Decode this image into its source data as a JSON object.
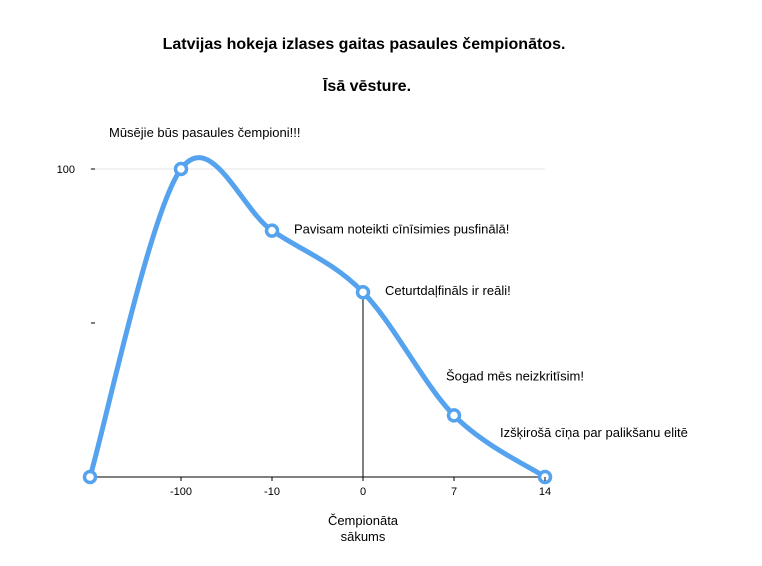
{
  "title": "Latvijas hokeja izlases gaitas pasaules čempionātos.",
  "subtitle": "Īsā vēsture.",
  "chart_data": {
    "type": "line",
    "title": "Latvijas hokeja izlases gaitas pasaules čempionātos.",
    "subtitle": "Īsā vēsture.",
    "xlabel": "Čempionāta\nsākums",
    "ylabel": "",
    "categories": [
      "",
      "-100",
      "-10",
      "0",
      "7",
      "14"
    ],
    "series": [
      {
        "values": [
          0,
          100,
          80,
          60,
          20,
          0
        ]
      }
    ],
    "y_ticks": [
      {
        "value": 100,
        "label": "100"
      },
      {
        "value": 50,
        "label": ""
      }
    ],
    "ylim": [
      0,
      100
    ],
    "grid": false,
    "line_color": "#55a3ee",
    "annotations": [
      {
        "point": 1,
        "text": "Mūsējie būs pasaules čempioni!!!",
        "position": "above-left"
      },
      {
        "point": 2,
        "text": "Pavisam noteikti cīnīsimies pusfinālā!",
        "position": "right"
      },
      {
        "point": 3,
        "text": "Ceturtdaļfināls ir reāli!",
        "position": "right"
      },
      {
        "point": 4,
        "text": "Šogad mēs neizkritīsim!",
        "position": "above"
      },
      {
        "point": 5,
        "text": "Izšķirošā cīņa par palikšanu elitē",
        "position": "above-left"
      }
    ],
    "reference_line": {
      "point": 3
    }
  }
}
